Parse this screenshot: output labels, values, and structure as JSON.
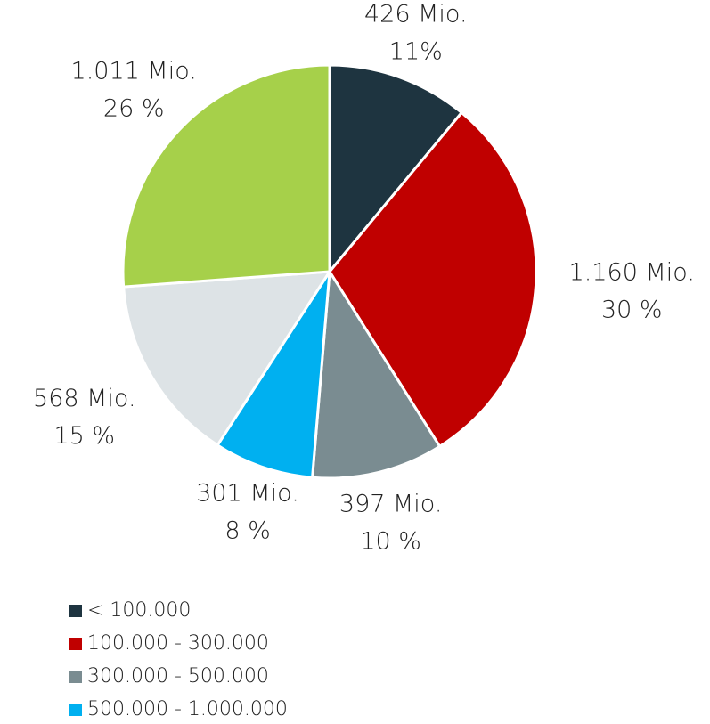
{
  "chart_data": {
    "type": "pie",
    "categories": [
      "< 100.000",
      "100.000 - 300.000",
      "300.000 - 500.000",
      "500.000 - 1.000.000",
      null,
      null
    ],
    "values": [
      426,
      1160,
      397,
      301,
      568,
      1011
    ],
    "value_labels": [
      "426 Mio.",
      "1.160 Mio.",
      "397 Mio.",
      "301 Mio.",
      "568 Mio.",
      "1.011 Mio."
    ],
    "percent_labels": [
      "11%",
      "30 %",
      "10 %",
      "8 %",
      "15 %",
      "26 %"
    ],
    "colors": [
      "#1e3440",
      "#c00000",
      "#7a8c91",
      "#00b0f0",
      "#dde3e6",
      "#a6d04a"
    ],
    "legend": "bottom"
  }
}
